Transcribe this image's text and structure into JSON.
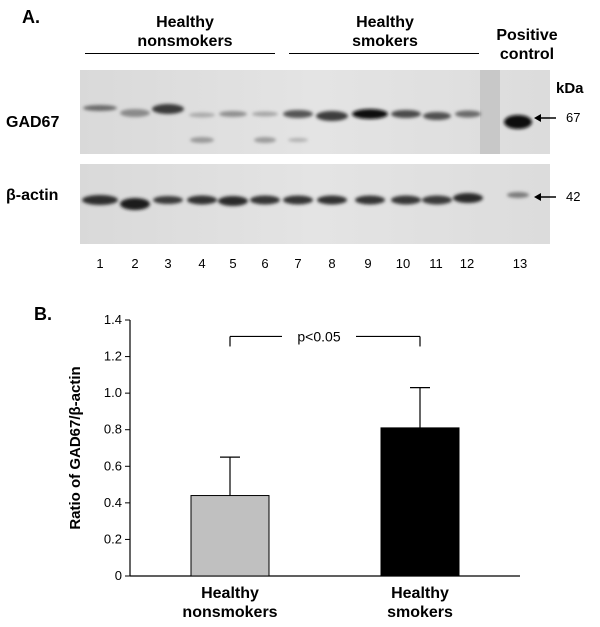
{
  "panel_a": {
    "label": "A.",
    "groups": [
      {
        "line1": "Healthy",
        "line2": "nonsmokers"
      },
      {
        "line1": "Healthy",
        "line2": "smokers"
      },
      {
        "line1": "Positive",
        "line2": "control"
      }
    ],
    "kda_label": "kDa",
    "rows": [
      {
        "label": "GAD67",
        "marker": "67"
      },
      {
        "label": "β-actin",
        "marker": "42"
      }
    ],
    "lanes": [
      "1",
      "2",
      "3",
      "4",
      "5",
      "6",
      "7",
      "8",
      "9",
      "10",
      "11",
      "12",
      "13"
    ]
  },
  "panel_b": {
    "label": "B.",
    "significance": "p<0.05"
  },
  "chart_data": {
    "type": "bar",
    "categories": [
      [
        "Healthy",
        "nonsmokers"
      ],
      [
        "Healthy",
        "smokers"
      ]
    ],
    "values": [
      0.44,
      0.81
    ],
    "errors": [
      0.21,
      0.22
    ],
    "colors": [
      "#c0c0c0",
      "#000000"
    ],
    "ylabel": "Ratio of GAD67/β-actin",
    "ylim": [
      0,
      1.4
    ],
    "yticks": [
      "0",
      "0.2",
      "0.4",
      "0.6",
      "0.8",
      "1.0",
      "1.2",
      "1.4"
    ]
  }
}
